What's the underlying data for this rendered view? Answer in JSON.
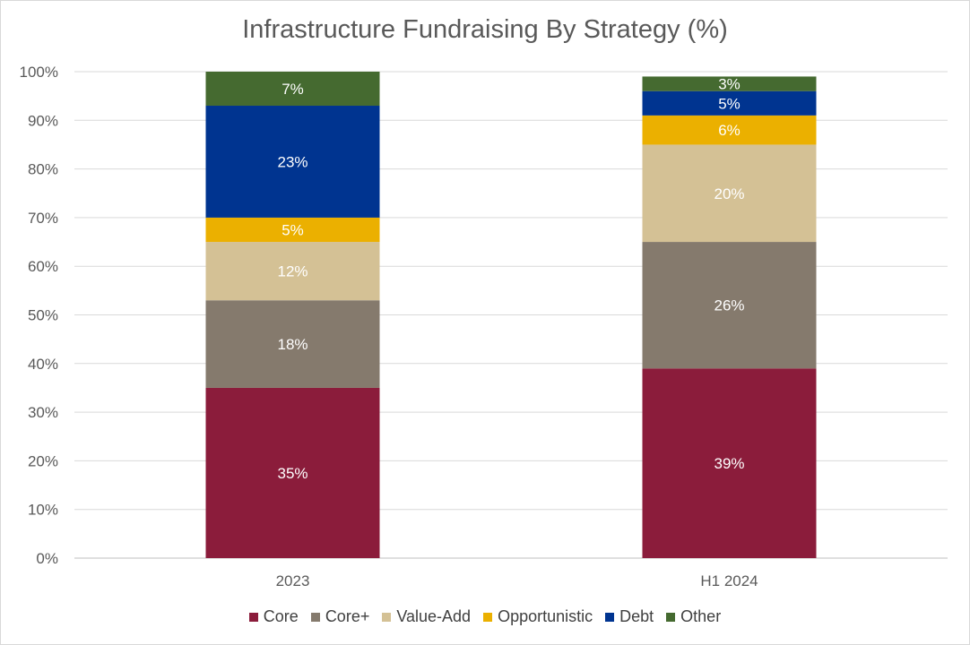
{
  "chart_data": {
    "type": "bar",
    "stacked": true,
    "title": "Infrastructure Fundraising By Strategy (%)",
    "categories": [
      "2023",
      "H1 2024"
    ],
    "ylim": [
      0,
      100
    ],
    "yticks": [
      "0%",
      "10%",
      "20%",
      "30%",
      "40%",
      "50%",
      "60%",
      "70%",
      "80%",
      "90%",
      "100%"
    ],
    "grid": true,
    "legend_position": "bottom",
    "series": [
      {
        "name": "Core",
        "color": "#8b1c3b",
        "values": [
          35,
          39
        ],
        "labels": [
          "35%",
          "39%"
        ]
      },
      {
        "name": "Core+",
        "color": "#857a6d",
        "values": [
          18,
          26
        ],
        "labels": [
          "18%",
          "26%"
        ]
      },
      {
        "name": "Value-Add",
        "color": "#d4c195",
        "values": [
          12,
          20
        ],
        "labels": [
          "12%",
          "20%"
        ]
      },
      {
        "name": "Opportunistic",
        "color": "#ebb000",
        "values": [
          5,
          6
        ],
        "labels": [
          "5%",
          "6%"
        ]
      },
      {
        "name": "Debt",
        "color": "#003490",
        "values": [
          23,
          5
        ],
        "labels": [
          "23%",
          "5%"
        ]
      },
      {
        "name": "Other",
        "color": "#456a30",
        "values": [
          7,
          3
        ],
        "labels": [
          "7%",
          "3%"
        ]
      }
    ]
  }
}
